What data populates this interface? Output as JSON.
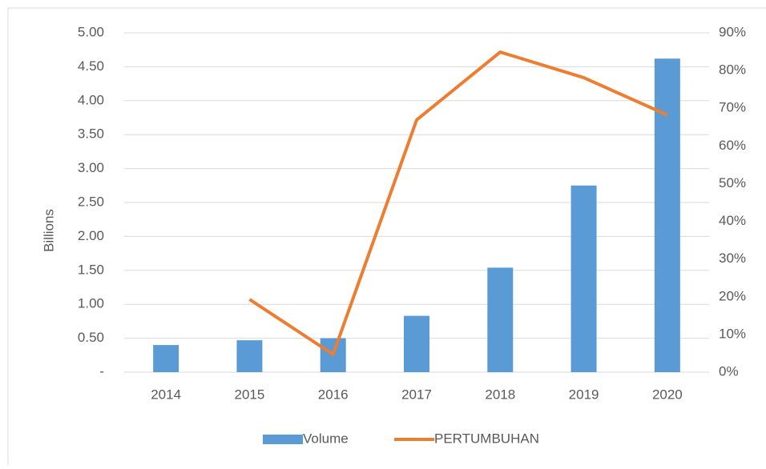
{
  "chart_data": {
    "type": "bar-line",
    "y_axis_label": "Billions",
    "categories": [
      "2014",
      "2015",
      "2016",
      "2017",
      "2018",
      "2019",
      "2020"
    ],
    "series": [
      {
        "name": "Volume",
        "type": "bar",
        "color": "#5b9bd5",
        "values": [
          0.4,
          0.47,
          0.5,
          0.83,
          1.54,
          2.75,
          4.62
        ]
      },
      {
        "name": "PERTUMBUHAN",
        "type": "line",
        "axis": "y2",
        "color": "#ed7d31",
        "values": [
          null,
          19.3,
          4.7,
          66.9,
          84.9,
          78.1,
          68.2
        ]
      }
    ],
    "ylim": [
      0,
      5
    ],
    "yticks": [
      {
        "value": 0,
        "label": "-"
      },
      {
        "value": 0.5,
        "label": "0.50"
      },
      {
        "value": 1,
        "label": "1.00"
      },
      {
        "value": 1.5,
        "label": "1.50"
      },
      {
        "value": 2,
        "label": "2.00"
      },
      {
        "value": 2.5,
        "label": "2.50"
      },
      {
        "value": 3,
        "label": "3.00"
      },
      {
        "value": 3.5,
        "label": "3.50"
      },
      {
        "value": 4,
        "label": "4.00"
      },
      {
        "value": 4.5,
        "label": "4.50"
      },
      {
        "value": 5,
        "label": "5.00"
      }
    ],
    "y2lim": [
      0,
      90
    ],
    "y2ticks": [
      {
        "value": 0,
        "label": "0%"
      },
      {
        "value": 10,
        "label": "10%"
      },
      {
        "value": 20,
        "label": "20%"
      },
      {
        "value": 30,
        "label": "30%"
      },
      {
        "value": 40,
        "label": "40%"
      },
      {
        "value": 50,
        "label": "50%"
      },
      {
        "value": 60,
        "label": "60%"
      },
      {
        "value": 70,
        "label": "70%"
      },
      {
        "value": 80,
        "label": "80%"
      },
      {
        "value": 90,
        "label": "90%"
      }
    ],
    "grid": true,
    "legend": "bottom"
  }
}
